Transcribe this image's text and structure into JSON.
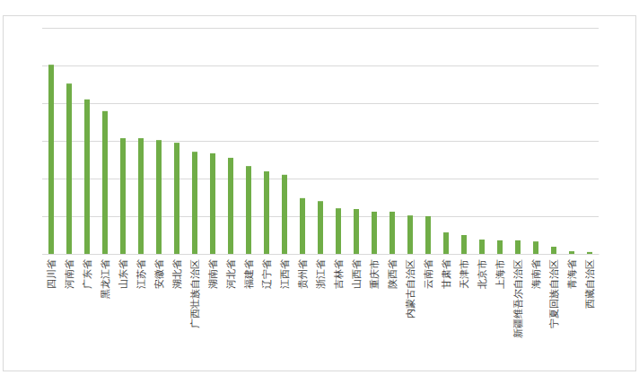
{
  "chart_data": {
    "type": "bar",
    "categories": [
      "四川省",
      "河南省",
      "广东省",
      "黑龙江省",
      "山东省",
      "江苏省",
      "安徽省",
      "湖北省",
      "广西壮族自治区",
      "湖南省",
      "河北省",
      "福建省",
      "辽宁省",
      "江西省",
      "贵州省",
      "浙江省",
      "吉林省",
      "山西省",
      "重庆市",
      "陕西省",
      "内蒙古自治区",
      "云南省",
      "甘肃省",
      "天津市",
      "北京市",
      "上海市",
      "新疆维吾尔自治区",
      "海南省",
      "宁夏回族自治区",
      "青海省",
      "西藏自治区"
    ],
    "values": [
      5.02,
      4.52,
      4.1,
      3.79,
      3.07,
      3.07,
      3.02,
      2.95,
      2.71,
      2.67,
      2.55,
      2.33,
      2.19,
      2.1,
      1.48,
      1.4,
      1.21,
      1.19,
      1.12,
      1.12,
      1.02,
      1.0,
      0.57,
      0.5,
      0.38,
      0.36,
      0.36,
      0.33,
      0.19,
      0.07,
      0.05
    ],
    "color": "#70ad47",
    "ylim": [
      0,
      6
    ],
    "yticks": [
      0,
      1,
      2,
      3,
      4,
      5,
      6
    ],
    "grid": true,
    "tick_labels": "x"
  }
}
